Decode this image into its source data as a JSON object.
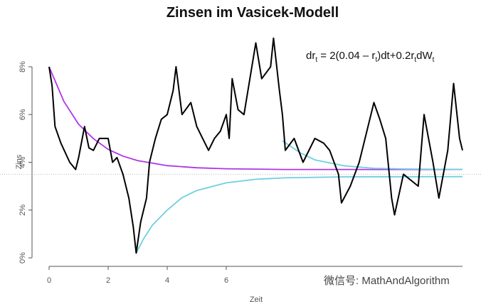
{
  "chart_data": {
    "type": "line",
    "title": "Zinsen im Vasicek-Modell",
    "x_label": "Zeit",
    "y_label": "Zins",
    "annotation": [
      "dr",
      "t",
      " = 2(0.04 – r",
      "t",
      ")dt+0.2r",
      "t",
      "dW",
      "t"
    ],
    "watermark": "微信号: MathAndAlgorithm",
    "xlim": [
      0,
      14
    ],
    "xticks": [
      0,
      2,
      4,
      6
    ],
    "ylim": [
      0,
      8
    ],
    "yticks": [
      {
        "value": 0,
        "label": "0%"
      },
      {
        "value": 2,
        "label": "2%"
      },
      {
        "value": 4,
        "label": "4%"
      },
      {
        "value": 6,
        "label": "6%"
      },
      {
        "value": 8,
        "label": "8%"
      }
    ],
    "hline": 3.5,
    "series": [
      {
        "color": "#000000",
        "x": [
          0,
          0.1,
          0.2,
          0.4,
          0.7,
          0.9,
          1.0,
          1.2,
          1.35,
          1.5,
          1.7,
          2.0,
          2.15,
          2.3,
          2.5,
          2.7,
          2.85,
          2.95,
          3.1,
          3.3,
          3.4,
          3.6,
          3.8,
          4.0,
          4.2,
          4.3,
          4.5,
          4.8,
          5.0,
          5.2,
          5.4,
          5.6,
          5.8,
          6.0,
          6.1,
          6.2,
          6.4,
          6.6,
          6.8,
          7.0,
          7.2,
          7.5,
          7.6,
          7.8,
          7.9,
          8.0,
          8.3,
          8.6,
          9.0,
          9.3,
          9.5,
          9.8,
          9.9,
          10.2,
          10.5,
          11.0,
          11.2,
          11.4,
          11.6,
          11.7,
          12.0,
          12.3,
          12.5,
          12.7,
          13.0,
          13.2,
          13.5,
          13.7,
          13.9,
          14.0
        ],
        "values": [
          8.0,
          7.2,
          5.5,
          4.8,
          4.0,
          3.7,
          4.2,
          5.5,
          4.6,
          4.5,
          5.0,
          5.0,
          4.0,
          4.2,
          3.5,
          2.5,
          1.3,
          0.2,
          1.5,
          2.5,
          4.0,
          5.0,
          5.8,
          6.0,
          7.0,
          8.0,
          6.0,
          6.5,
          5.5,
          5.0,
          4.5,
          5.0,
          5.3,
          6.0,
          5.0,
          7.5,
          6.2,
          6.0,
          7.5,
          9.0,
          7.5,
          8.0,
          9.2,
          7.0,
          6.0,
          4.5,
          5.0,
          4.0,
          5.0,
          4.8,
          4.5,
          3.5,
          2.3,
          3.0,
          4.0,
          6.5,
          5.8,
          5.0,
          2.5,
          1.8,
          3.5,
          3.2,
          3.0,
          6.0,
          4.0,
          2.5,
          4.5,
          7.3,
          5.0,
          4.5
        ]
      },
      {
        "color": "#b034e6",
        "x": [
          0,
          0.5,
          1,
          1.5,
          2,
          2.5,
          3,
          4,
          5,
          6,
          8,
          10,
          14
        ],
        "values": [
          8.0,
          6.55,
          5.59,
          4.99,
          4.54,
          4.26,
          4.07,
          3.86,
          3.77,
          3.73,
          3.7,
          3.7,
          3.7
        ]
      },
      {
        "color": "#6ecfe0",
        "x": [
          2.95,
          3.2,
          3.5,
          4,
          4.5,
          5,
          6,
          7,
          8,
          10,
          14
        ],
        "values": [
          0.2,
          0.8,
          1.37,
          2.0,
          2.52,
          2.82,
          3.14,
          3.29,
          3.35,
          3.39,
          3.4
        ]
      },
      {
        "color": "#6ecfe0",
        "x": [
          7.9,
          8.5,
          9,
          10,
          11,
          12,
          14
        ],
        "values": [
          4.9,
          4.4,
          4.1,
          3.85,
          3.75,
          3.72,
          3.7
        ]
      }
    ]
  }
}
